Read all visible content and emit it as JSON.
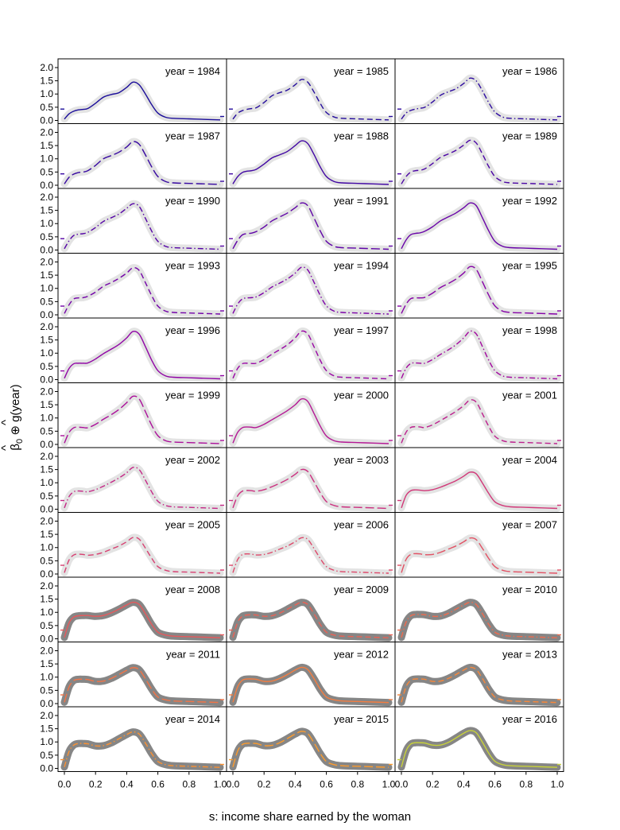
{
  "chart_data": {
    "type": "line",
    "xlabel": "s: income share earned by the woman",
    "ylabel": "β̂0 ⊕ ĝ(year)",
    "ylabel_parts": {
      "beta": "β",
      "sub0": "0",
      "oplus": "⊕",
      "g": "g",
      "rest": "(year)",
      "hat": "^"
    },
    "xlim": [
      0,
      1
    ],
    "ylim": [
      0,
      2.15
    ],
    "xticks": [
      "0.0",
      "0.2",
      "0.4",
      "0.6",
      "0.8",
      "1.0"
    ],
    "yticks": [
      "0.0",
      "0.5",
      "1.0",
      "1.5",
      "2.0"
    ],
    "layout": "11 rows × 3 columns of panels",
    "x": [
      0.0,
      0.03,
      0.06,
      0.09,
      0.12,
      0.15,
      0.2,
      0.25,
      0.3,
      0.35,
      0.4,
      0.44,
      0.48,
      0.52,
      0.56,
      0.6,
      0.65,
      0.7,
      0.8,
      0.9,
      1.0
    ],
    "panels": [
      {
        "label": "year = 1984",
        "color": "#1b0d9a",
        "dash": "solid",
        "y": [
          0.05,
          0.25,
          0.35,
          0.4,
          0.42,
          0.45,
          0.65,
          0.88,
          0.98,
          1.05,
          1.25,
          1.45,
          1.35,
          1.0,
          0.6,
          0.28,
          0.12,
          0.08,
          0.06,
          0.04,
          0.02
        ]
      },
      {
        "label": "year = 1985",
        "color": "#240c9c",
        "dash": "dash",
        "y": [
          0.05,
          0.27,
          0.37,
          0.42,
          0.45,
          0.48,
          0.68,
          0.93,
          1.05,
          1.15,
          1.35,
          1.55,
          1.45,
          1.08,
          0.65,
          0.3,
          0.13,
          0.08,
          0.06,
          0.04,
          0.02
        ]
      },
      {
        "label": "year = 1986",
        "color": "#2d0a9f",
        "dash": "dashdot",
        "y": [
          0.05,
          0.28,
          0.38,
          0.43,
          0.46,
          0.5,
          0.7,
          0.95,
          1.08,
          1.2,
          1.4,
          1.6,
          1.5,
          1.12,
          0.68,
          0.32,
          0.13,
          0.08,
          0.06,
          0.04,
          0.02
        ]
      },
      {
        "label": "year = 1987",
        "color": "#3708a1",
        "dash": "longdash",
        "y": [
          0.05,
          0.3,
          0.42,
          0.48,
          0.5,
          0.55,
          0.75,
          1.0,
          1.12,
          1.25,
          1.45,
          1.65,
          1.55,
          1.15,
          0.7,
          0.33,
          0.14,
          0.09,
          0.07,
          0.05,
          0.03
        ]
      },
      {
        "label": "year = 1988",
        "color": "#4106a3",
        "dash": "solid",
        "y": [
          0.05,
          0.32,
          0.48,
          0.53,
          0.55,
          0.6,
          0.8,
          1.03,
          1.15,
          1.28,
          1.5,
          1.68,
          1.58,
          1.17,
          0.7,
          0.33,
          0.14,
          0.09,
          0.07,
          0.05,
          0.03
        ]
      },
      {
        "label": "year = 1989",
        "color": "#4b05a5",
        "dash": "dash",
        "y": [
          0.05,
          0.33,
          0.5,
          0.55,
          0.57,
          0.62,
          0.82,
          1.05,
          1.18,
          1.32,
          1.52,
          1.7,
          1.6,
          1.18,
          0.71,
          0.33,
          0.14,
          0.09,
          0.07,
          0.05,
          0.03
        ]
      },
      {
        "label": "year = 1990",
        "color": "#5504a6",
        "dash": "dashdot",
        "y": [
          0.05,
          0.35,
          0.55,
          0.6,
          0.62,
          0.67,
          0.85,
          1.08,
          1.22,
          1.36,
          1.58,
          1.75,
          1.65,
          1.2,
          0.72,
          0.33,
          0.14,
          0.09,
          0.07,
          0.05,
          0.03
        ]
      },
      {
        "label": "year = 1991",
        "color": "#5f03a7",
        "dash": "longdash",
        "y": [
          0.05,
          0.36,
          0.57,
          0.62,
          0.64,
          0.7,
          0.87,
          1.1,
          1.25,
          1.4,
          1.6,
          1.78,
          1.68,
          1.22,
          0.73,
          0.33,
          0.14,
          0.09,
          0.07,
          0.05,
          0.03
        ]
      },
      {
        "label": "year = 1992",
        "color": "#6903a8",
        "dash": "solid",
        "y": [
          0.05,
          0.38,
          0.58,
          0.63,
          0.65,
          0.71,
          0.88,
          1.1,
          1.25,
          1.4,
          1.6,
          1.78,
          1.68,
          1.22,
          0.73,
          0.33,
          0.14,
          0.09,
          0.07,
          0.05,
          0.03
        ]
      },
      {
        "label": "year = 1993",
        "color": "#7303a8",
        "dash": "dash",
        "y": [
          0.05,
          0.38,
          0.6,
          0.64,
          0.65,
          0.7,
          0.86,
          1.08,
          1.22,
          1.38,
          1.58,
          1.78,
          1.68,
          1.22,
          0.73,
          0.33,
          0.14,
          0.09,
          0.07,
          0.05,
          0.03
        ]
      },
      {
        "label": "year = 1994",
        "color": "#7c02a8",
        "dash": "dashdot",
        "y": [
          0.05,
          0.4,
          0.6,
          0.64,
          0.65,
          0.68,
          0.84,
          1.05,
          1.2,
          1.36,
          1.58,
          1.8,
          1.7,
          1.24,
          0.74,
          0.34,
          0.14,
          0.09,
          0.07,
          0.05,
          0.03
        ]
      },
      {
        "label": "year = 1995",
        "color": "#8603a7",
        "dash": "longdash",
        "y": [
          0.05,
          0.4,
          0.61,
          0.64,
          0.64,
          0.66,
          0.82,
          1.03,
          1.18,
          1.35,
          1.58,
          1.82,
          1.72,
          1.25,
          0.75,
          0.34,
          0.14,
          0.09,
          0.07,
          0.05,
          0.03
        ]
      },
      {
        "label": "year = 1996",
        "color": "#9004a5",
        "dash": "solid",
        "y": [
          0.05,
          0.42,
          0.6,
          0.62,
          0.62,
          0.63,
          0.78,
          0.98,
          1.15,
          1.33,
          1.58,
          1.82,
          1.72,
          1.25,
          0.74,
          0.34,
          0.14,
          0.09,
          0.07,
          0.05,
          0.03
        ]
      },
      {
        "label": "year = 1997",
        "color": "#9906a4",
        "dash": "dash",
        "y": [
          0.05,
          0.42,
          0.6,
          0.62,
          0.61,
          0.62,
          0.76,
          0.96,
          1.13,
          1.32,
          1.58,
          1.83,
          1.73,
          1.25,
          0.74,
          0.34,
          0.14,
          0.09,
          0.07,
          0.05,
          0.03
        ]
      },
      {
        "label": "year = 1998",
        "color": "#a2089f",
        "dash": "dashdot",
        "y": [
          0.05,
          0.43,
          0.61,
          0.63,
          0.62,
          0.62,
          0.76,
          0.95,
          1.12,
          1.32,
          1.58,
          1.83,
          1.73,
          1.25,
          0.74,
          0.34,
          0.14,
          0.09,
          0.07,
          0.05,
          0.03
        ]
      },
      {
        "label": "year = 1999",
        "color": "#ab0f9a",
        "dash": "longdash",
        "y": [
          0.05,
          0.45,
          0.63,
          0.65,
          0.64,
          0.63,
          0.76,
          0.95,
          1.12,
          1.32,
          1.58,
          1.82,
          1.72,
          1.24,
          0.73,
          0.33,
          0.14,
          0.09,
          0.07,
          0.05,
          0.03
        ]
      },
      {
        "label": "year = 2000",
        "color": "#b41794",
        "dash": "solid",
        "y": [
          0.05,
          0.45,
          0.63,
          0.66,
          0.65,
          0.64,
          0.76,
          0.93,
          1.1,
          1.28,
          1.5,
          1.72,
          1.63,
          1.18,
          0.7,
          0.32,
          0.14,
          0.09,
          0.07,
          0.05,
          0.03
        ]
      },
      {
        "label": "year = 2001",
        "color": "#bc1f8d",
        "dash": "dash",
        "y": [
          0.05,
          0.46,
          0.64,
          0.67,
          0.66,
          0.64,
          0.74,
          0.9,
          1.07,
          1.25,
          1.47,
          1.68,
          1.6,
          1.16,
          0.69,
          0.31,
          0.14,
          0.09,
          0.07,
          0.05,
          0.03
        ]
      },
      {
        "label": "year = 2002",
        "color": "#c42786",
        "dash": "dashdot",
        "y": [
          0.05,
          0.48,
          0.66,
          0.69,
          0.68,
          0.66,
          0.74,
          0.87,
          1.02,
          1.18,
          1.38,
          1.58,
          1.5,
          1.1,
          0.66,
          0.3,
          0.14,
          0.09,
          0.07,
          0.05,
          0.03
        ]
      },
      {
        "label": "year = 2003",
        "color": "#cb2f7f",
        "dash": "longdash",
        "y": [
          0.05,
          0.5,
          0.68,
          0.71,
          0.7,
          0.68,
          0.74,
          0.85,
          0.98,
          1.13,
          1.32,
          1.5,
          1.43,
          1.05,
          0.63,
          0.29,
          0.14,
          0.09,
          0.07,
          0.05,
          0.03
        ]
      },
      {
        "label": "year = 2004",
        "color": "#d13778",
        "dash": "solid",
        "y": [
          0.05,
          0.52,
          0.7,
          0.73,
          0.72,
          0.7,
          0.74,
          0.83,
          0.95,
          1.08,
          1.25,
          1.4,
          1.34,
          0.99,
          0.6,
          0.28,
          0.14,
          0.09,
          0.07,
          0.05,
          0.03
        ]
      },
      {
        "label": "year = 2005",
        "color": "#d73f71",
        "dash": "dash",
        "y": [
          0.05,
          0.53,
          0.72,
          0.75,
          0.74,
          0.71,
          0.74,
          0.82,
          0.94,
          1.06,
          1.22,
          1.38,
          1.32,
          0.98,
          0.6,
          0.28,
          0.14,
          0.09,
          0.07,
          0.05,
          0.03
        ]
      },
      {
        "label": "year = 2006",
        "color": "#dd486a",
        "dash": "dashdot",
        "y": [
          0.05,
          0.54,
          0.73,
          0.76,
          0.75,
          0.72,
          0.74,
          0.82,
          0.94,
          1.06,
          1.22,
          1.37,
          1.31,
          0.97,
          0.59,
          0.28,
          0.14,
          0.09,
          0.07,
          0.05,
          0.03
        ]
      },
      {
        "label": "year = 2007",
        "color": "#e25063",
        "dash": "longdash",
        "y": [
          0.05,
          0.55,
          0.74,
          0.77,
          0.76,
          0.73,
          0.74,
          0.82,
          0.94,
          1.06,
          1.22,
          1.36,
          1.3,
          0.97,
          0.59,
          0.28,
          0.14,
          0.09,
          0.07,
          0.05,
          0.03
        ]
      },
      {
        "label": "year = 2008",
        "color": "#e7595c",
        "dash": "solid",
        "y": [
          0.05,
          0.6,
          0.82,
          0.87,
          0.88,
          0.88,
          0.85,
          0.88,
          0.98,
          1.12,
          1.28,
          1.38,
          1.3,
          0.95,
          0.55,
          0.25,
          0.14,
          0.1,
          0.08,
          0.06,
          0.04
        ]
      },
      {
        "label": "year = 2009",
        "color": "#eb6255",
        "dash": "dash",
        "y": [
          0.05,
          0.62,
          0.85,
          0.9,
          0.91,
          0.9,
          0.85,
          0.87,
          0.97,
          1.12,
          1.28,
          1.38,
          1.3,
          0.95,
          0.55,
          0.25,
          0.14,
          0.1,
          0.08,
          0.06,
          0.04
        ]
      },
      {
        "label": "year = 2010",
        "color": "#ef6b4e",
        "dash": "dashdot",
        "y": [
          0.05,
          0.63,
          0.87,
          0.92,
          0.92,
          0.91,
          0.85,
          0.86,
          0.96,
          1.12,
          1.28,
          1.38,
          1.3,
          0.95,
          0.55,
          0.25,
          0.14,
          0.1,
          0.08,
          0.06,
          0.04
        ]
      },
      {
        "label": "year = 2011",
        "color": "#f27447",
        "dash": "longdash",
        "y": [
          0.05,
          0.63,
          0.87,
          0.92,
          0.92,
          0.91,
          0.84,
          0.85,
          0.95,
          1.1,
          1.26,
          1.36,
          1.28,
          0.94,
          0.55,
          0.25,
          0.14,
          0.1,
          0.08,
          0.06,
          0.04
        ]
      },
      {
        "label": "year = 2012",
        "color": "#f57d40",
        "dash": "solid",
        "y": [
          0.05,
          0.63,
          0.88,
          0.93,
          0.93,
          0.92,
          0.84,
          0.85,
          0.95,
          1.1,
          1.27,
          1.37,
          1.29,
          0.95,
          0.55,
          0.25,
          0.14,
          0.1,
          0.08,
          0.06,
          0.04
        ]
      },
      {
        "label": "year = 2013",
        "color": "#f8873a",
        "dash": "dash",
        "y": [
          0.05,
          0.64,
          0.88,
          0.93,
          0.93,
          0.92,
          0.84,
          0.85,
          0.95,
          1.1,
          1.27,
          1.37,
          1.29,
          0.95,
          0.55,
          0.25,
          0.14,
          0.1,
          0.08,
          0.06,
          0.04
        ]
      },
      {
        "label": "year = 2014",
        "color": "#fa9133",
        "dash": "dashdot",
        "y": [
          0.05,
          0.64,
          0.88,
          0.94,
          0.94,
          0.93,
          0.85,
          0.86,
          0.96,
          1.12,
          1.28,
          1.38,
          1.3,
          0.96,
          0.56,
          0.26,
          0.14,
          0.1,
          0.08,
          0.06,
          0.04
        ]
      },
      {
        "label": "year = 2015",
        "color": "#fc9b2d",
        "dash": "longdash",
        "y": [
          0.05,
          0.65,
          0.9,
          0.95,
          0.95,
          0.94,
          0.86,
          0.87,
          0.97,
          1.13,
          1.3,
          1.4,
          1.32,
          0.97,
          0.57,
          0.26,
          0.14,
          0.1,
          0.08,
          0.06,
          0.04
        ]
      },
      {
        "label": "year = 2016",
        "color": "#c8d23a",
        "dash": "solid",
        "y": [
          0.05,
          0.66,
          0.92,
          0.97,
          0.97,
          0.96,
          0.88,
          0.88,
          0.98,
          1.15,
          1.33,
          1.43,
          1.35,
          0.99,
          0.58,
          0.27,
          0.14,
          0.1,
          0.08,
          0.06,
          0.04
        ]
      }
    ]
  }
}
